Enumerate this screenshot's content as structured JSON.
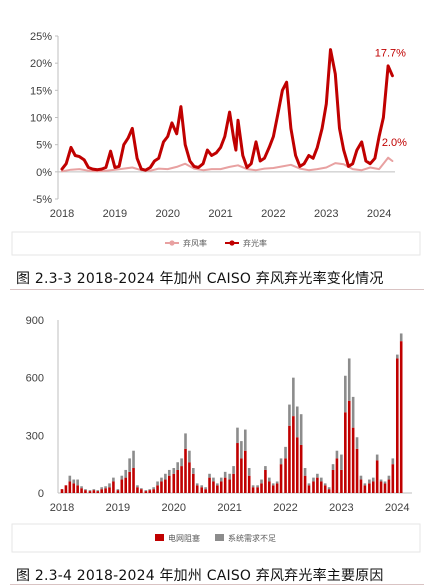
{
  "colors": {
    "curtail_rate": "#e8a1a1",
    "solar_rate": "#c00000",
    "grid_congestion": "#c00000",
    "oversupply": "#8c8c8c",
    "axis_text": "#404040",
    "caption_text": "#111111"
  },
  "chart_data": [
    {
      "type": "line",
      "title": "",
      "caption": "图 2.3-3 2018-2024 年加州 CAISO 弃风弃光率变化情况",
      "xlabel": "",
      "ylabel": "",
      "ylim": [
        -5,
        25
      ],
      "y_ticks": [
        "25%",
        "20%",
        "15%",
        "10%",
        "5%",
        "0%",
        "-5%"
      ],
      "y_tick_values": [
        25,
        20,
        15,
        10,
        5,
        0,
        -5
      ],
      "x_ticks": [
        "2018",
        "2019",
        "2020",
        "2021",
        "2022",
        "2023",
        "2024"
      ],
      "x_tick_values": [
        2018,
        2019,
        2020,
        2021,
        2022,
        2023,
        2024
      ],
      "grid": false,
      "legend_position": "bottom",
      "annotations": [
        "17.7%",
        "2.0%"
      ],
      "series": [
        {
          "name": "弃风率",
          "color": "#e8a1a1",
          "x": [
            2018.0,
            2018.17,
            2018.33,
            2018.5,
            2018.67,
            2018.83,
            2019.0,
            2019.17,
            2019.33,
            2019.5,
            2019.67,
            2019.83,
            2020.0,
            2020.17,
            2020.33,
            2020.5,
            2020.67,
            2020.83,
            2021.0,
            2021.17,
            2021.33,
            2021.5,
            2021.67,
            2021.83,
            2022.0,
            2022.17,
            2022.33,
            2022.5,
            2022.67,
            2022.83,
            2023.0,
            2023.17,
            2023.33,
            2023.5,
            2023.67,
            2023.83,
            2024.0,
            2024.08,
            2024.17,
            2024.25
          ],
          "values": [
            0.1,
            0.4,
            0.5,
            0.2,
            0.1,
            0.2,
            0.4,
            0.6,
            0.8,
            0.3,
            0.2,
            0.6,
            0.5,
            0.9,
            1.5,
            0.6,
            0.3,
            0.5,
            0.5,
            0.9,
            1.2,
            0.5,
            0.3,
            0.6,
            0.7,
            1.0,
            1.3,
            0.6,
            0.3,
            0.5,
            0.8,
            1.6,
            1.4,
            0.5,
            0.3,
            0.8,
            0.5,
            1.5,
            2.6,
            2.0
          ]
        },
        {
          "name": "弃光率",
          "color": "#c00000",
          "x": [
            2018.0,
            2018.08,
            2018.17,
            2018.25,
            2018.33,
            2018.42,
            2018.5,
            2018.58,
            2018.67,
            2018.75,
            2018.83,
            2018.92,
            2019.0,
            2019.08,
            2019.17,
            2019.25,
            2019.33,
            2019.42,
            2019.5,
            2019.58,
            2019.67,
            2019.75,
            2019.83,
            2019.92,
            2020.0,
            2020.08,
            2020.17,
            2020.25,
            2020.33,
            2020.42,
            2020.5,
            2020.58,
            2020.67,
            2020.75,
            2020.83,
            2020.92,
            2021.0,
            2021.08,
            2021.17,
            2021.25,
            2021.29,
            2021.33,
            2021.42,
            2021.5,
            2021.58,
            2021.67,
            2021.75,
            2021.83,
            2021.92,
            2022.0,
            2022.08,
            2022.17,
            2022.25,
            2022.33,
            2022.42,
            2022.5,
            2022.58,
            2022.67,
            2022.75,
            2022.83,
            2022.92,
            2023.0,
            2023.08,
            2023.17,
            2023.25,
            2023.33,
            2023.42,
            2023.5,
            2023.58,
            2023.67,
            2023.75,
            2023.83,
            2023.92,
            2024.0,
            2024.08,
            2024.17,
            2024.25
          ],
          "values": [
            0.5,
            1.5,
            4.5,
            3.0,
            2.8,
            2.2,
            0.8,
            0.5,
            0.4,
            0.5,
            0.8,
            3.8,
            0.8,
            1.0,
            5.0,
            6.2,
            8.0,
            2.5,
            0.5,
            0.3,
            0.8,
            2.0,
            2.5,
            5.5,
            6.5,
            9.0,
            7.0,
            12.0,
            5.0,
            2.0,
            1.0,
            0.8,
            1.5,
            4.0,
            3.0,
            3.5,
            4.5,
            6.5,
            11.0,
            6.0,
            4.0,
            9.5,
            3.0,
            0.8,
            1.5,
            5.5,
            2.0,
            2.5,
            4.5,
            6.5,
            10.5,
            15.0,
            16.5,
            8.0,
            3.0,
            1.0,
            1.5,
            3.0,
            2.5,
            4.5,
            8.0,
            12.5,
            22.5,
            18.0,
            8.0,
            4.0,
            1.0,
            1.5,
            4.0,
            5.5,
            2.0,
            1.5,
            2.5,
            6.5,
            10.0,
            19.5,
            17.7
          ]
        }
      ]
    },
    {
      "type": "bar",
      "title": "",
      "caption": "图 2.3-4 2018-2024 年加州 CAISO 弃风弃光率主要原因",
      "xlabel": "",
      "ylabel": "",
      "ylim": [
        0,
        900
      ],
      "y_ticks": [
        "900",
        "600",
        "300",
        "0"
      ],
      "y_tick_values": [
        900,
        600,
        300,
        0
      ],
      "x_ticks": [
        "2018",
        "2019",
        "2020",
        "2021",
        "2022",
        "2023",
        "2024"
      ],
      "x_tick_values": [
        2018,
        2019,
        2020,
        2021,
        2022,
        2023,
        2024
      ],
      "grid": false,
      "legend_position": "bottom",
      "stacked": true,
      "series_names": [
        "电网阻塞",
        "系统需求不足"
      ],
      "series_colors": [
        "#c00000",
        "#8c8c8c"
      ],
      "bars": [
        [
          2018.0,
          20,
          0
        ],
        [
          2018.07,
          40,
          0
        ],
        [
          2018.14,
          60,
          30
        ],
        [
          2018.21,
          50,
          20
        ],
        [
          2018.28,
          40,
          30
        ],
        [
          2018.35,
          25,
          10
        ],
        [
          2018.42,
          15,
          5
        ],
        [
          2018.5,
          10,
          5
        ],
        [
          2018.57,
          15,
          5
        ],
        [
          2018.64,
          10,
          5
        ],
        [
          2018.71,
          20,
          10
        ],
        [
          2018.78,
          25,
          10
        ],
        [
          2018.85,
          30,
          20
        ],
        [
          2018.92,
          60,
          20
        ],
        [
          2019.0,
          15,
          5
        ],
        [
          2019.07,
          70,
          20
        ],
        [
          2019.14,
          80,
          40
        ],
        [
          2019.21,
          110,
          70
        ],
        [
          2019.28,
          130,
          90
        ],
        [
          2019.35,
          30,
          10
        ],
        [
          2019.42,
          20,
          5
        ],
        [
          2019.5,
          10,
          5
        ],
        [
          2019.57,
          15,
          5
        ],
        [
          2019.64,
          20,
          10
        ],
        [
          2019.71,
          40,
          20
        ],
        [
          2019.78,
          60,
          20
        ],
        [
          2019.85,
          70,
          30
        ],
        [
          2019.92,
          90,
          30
        ],
        [
          2020.0,
          100,
          30
        ],
        [
          2020.07,
          120,
          40
        ],
        [
          2020.14,
          140,
          40
        ],
        [
          2020.21,
          230,
          80
        ],
        [
          2020.28,
          160,
          60
        ],
        [
          2020.35,
          100,
          30
        ],
        [
          2020.42,
          40,
          10
        ],
        [
          2020.5,
          30,
          10
        ],
        [
          2020.57,
          20,
          10
        ],
        [
          2020.64,
          80,
          20
        ],
        [
          2020.71,
          60,
          20
        ],
        [
          2020.78,
          40,
          10
        ],
        [
          2020.85,
          60,
          20
        ],
        [
          2020.92,
          80,
          30
        ],
        [
          2021.0,
          70,
          30
        ],
        [
          2021.07,
          100,
          40
        ],
        [
          2021.14,
          260,
          80
        ],
        [
          2021.21,
          180,
          90
        ],
        [
          2021.28,
          220,
          110
        ],
        [
          2021.35,
          90,
          40
        ],
        [
          2021.42,
          30,
          10
        ],
        [
          2021.5,
          30,
          10
        ],
        [
          2021.57,
          50,
          20
        ],
        [
          2021.64,
          120,
          20
        ],
        [
          2021.71,
          60,
          20
        ],
        [
          2021.78,
          40,
          10
        ],
        [
          2021.85,
          50,
          10
        ],
        [
          2021.92,
          150,
          30
        ],
        [
          2022.0,
          180,
          60
        ],
        [
          2022.07,
          350,
          110
        ],
        [
          2022.14,
          400,
          200
        ],
        [
          2022.21,
          290,
          160
        ],
        [
          2022.28,
          250,
          160
        ],
        [
          2022.35,
          90,
          40
        ],
        [
          2022.42,
          40,
          10
        ],
        [
          2022.5,
          60,
          20
        ],
        [
          2022.57,
          80,
          20
        ],
        [
          2022.64,
          60,
          20
        ],
        [
          2022.71,
          40,
          10
        ],
        [
          2022.78,
          20,
          10
        ],
        [
          2022.85,
          120,
          30
        ],
        [
          2022.92,
          180,
          40
        ],
        [
          2023.0,
          120,
          80
        ],
        [
          2023.07,
          420,
          190
        ],
        [
          2023.14,
          480,
          220
        ],
        [
          2023.21,
          340,
          160
        ],
        [
          2023.28,
          230,
          60
        ],
        [
          2023.35,
          70,
          20
        ],
        [
          2023.42,
          40,
          10
        ],
        [
          2023.5,
          50,
          20
        ],
        [
          2023.57,
          60,
          20
        ],
        [
          2023.64,
          170,
          30
        ],
        [
          2023.71,
          60,
          10
        ],
        [
          2023.78,
          50,
          10
        ],
        [
          2023.85,
          70,
          20
        ],
        [
          2023.92,
          150,
          30
        ],
        [
          2024.0,
          700,
          20
        ],
        [
          2024.07,
          790,
          40
        ]
      ]
    }
  ]
}
